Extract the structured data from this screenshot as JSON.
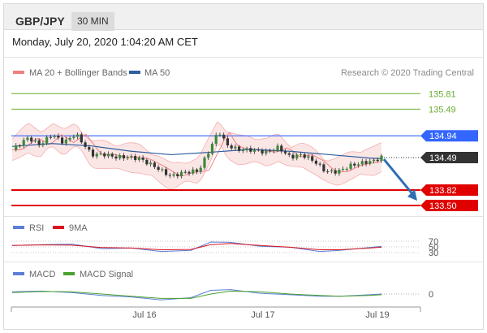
{
  "header": {
    "pair": "GBP/JPY",
    "interval": "30 MIN",
    "datetime": "Monday, July 20, 2020 1:04:20 AM CET"
  },
  "colors": {
    "bollinger": "#f08080",
    "bollinger_fill": "#fbe3e3",
    "ma50": "#2f5f9f",
    "resistance": "#6aab2e",
    "support": "#e00000",
    "pivot": "#3366ff",
    "current": "#333333",
    "arrow": "#2f6fb2",
    "rsi": "#5b7fd6",
    "rsi_ma": "#d9141e",
    "macd": "#5b7fd6",
    "macd_signal": "#4aa02c"
  },
  "chart_data": [
    {
      "type": "line",
      "title": "",
      "legend": [
        {
          "label": "MA 20 + Bollinger Bands",
          "color": "#f08080"
        },
        {
          "label": "MA 50",
          "color": "#2f5f9f"
        }
      ],
      "credit": "Research © 2020 Trading Central",
      "ylim": [
        133.35,
        136.05
      ],
      "x_ticks": [
        "Jul 16",
        "Jul 17",
        "Jul 19"
      ],
      "levels": [
        {
          "label": "135.81",
          "value": 135.81,
          "kind": "resistance"
        },
        {
          "label": "135.49",
          "value": 135.49,
          "kind": "resistance"
        },
        {
          "label": "134.94",
          "value": 134.94,
          "kind": "pivot"
        },
        {
          "label": "134.49",
          "value": 134.49,
          "kind": "current"
        },
        {
          "label": "133.82",
          "value": 133.82,
          "kind": "support"
        },
        {
          "label": "133.50",
          "value": 133.5,
          "kind": "support"
        }
      ],
      "price_path": [
        [
          0,
          134.65
        ],
        [
          8,
          134.9
        ],
        [
          14,
          134.75
        ],
        [
          20,
          134.97
        ],
        [
          26,
          134.8
        ],
        [
          32,
          134.98
        ],
        [
          40,
          134.55
        ],
        [
          46,
          134.56
        ],
        [
          52,
          134.5
        ],
        [
          58,
          134.5
        ],
        [
          64,
          134.47
        ],
        [
          72,
          134.3
        ],
        [
          80,
          134.1
        ],
        [
          86,
          134.18
        ],
        [
          94,
          134.22
        ],
        [
          100,
          134.7
        ],
        [
          104,
          135.05
        ],
        [
          108,
          134.75
        ],
        [
          114,
          134.65
        ],
        [
          120,
          134.65
        ],
        [
          128,
          134.6
        ],
        [
          134,
          134.7
        ],
        [
          140,
          134.5
        ],
        [
          146,
          134.55
        ],
        [
          152,
          134.42
        ],
        [
          158,
          134.2
        ],
        [
          164,
          134.2
        ],
        [
          170,
          134.32
        ],
        [
          176,
          134.38
        ],
        [
          182,
          134.42
        ],
        [
          186,
          134.5
        ]
      ],
      "ma50_path": [
        [
          0,
          134.72
        ],
        [
          20,
          134.78
        ],
        [
          40,
          134.73
        ],
        [
          60,
          134.62
        ],
        [
          80,
          134.55
        ],
        [
          100,
          134.6
        ],
        [
          120,
          134.66
        ],
        [
          140,
          134.62
        ],
        [
          160,
          134.55
        ],
        [
          180,
          134.48
        ],
        [
          186,
          134.47
        ]
      ],
      "arrow": {
        "from": [
          186,
          134.49
        ],
        "to": [
          198,
          133.6
        ]
      }
    },
    {
      "type": "line",
      "legend": [
        {
          "label": "RSI",
          "color": "#5b7fd6"
        },
        {
          "label": "9MA",
          "color": "#d9141e"
        }
      ],
      "ticks": [
        {
          "label": "70",
          "value": 70
        },
        {
          "label": "50",
          "value": 50
        },
        {
          "label": "30",
          "value": 30
        }
      ],
      "ylim": [
        10,
        90
      ],
      "rsi": [
        [
          0,
          55
        ],
        [
          15,
          58
        ],
        [
          30,
          60
        ],
        [
          45,
          44
        ],
        [
          60,
          46
        ],
        [
          75,
          34
        ],
        [
          90,
          38
        ],
        [
          100,
          67
        ],
        [
          110,
          66
        ],
        [
          125,
          52
        ],
        [
          140,
          49
        ],
        [
          155,
          34
        ],
        [
          165,
          38
        ],
        [
          180,
          48
        ],
        [
          186,
          52
        ]
      ],
      "ma9": [
        [
          0,
          55
        ],
        [
          15,
          57
        ],
        [
          30,
          56
        ],
        [
          45,
          48
        ],
        [
          60,
          46
        ],
        [
          75,
          40
        ],
        [
          90,
          41
        ],
        [
          100,
          58
        ],
        [
          110,
          62
        ],
        [
          125,
          55
        ],
        [
          140,
          49
        ],
        [
          155,
          40
        ],
        [
          165,
          40
        ],
        [
          180,
          46
        ],
        [
          186,
          49
        ]
      ]
    },
    {
      "type": "line",
      "legend": [
        {
          "label": "MACD",
          "color": "#5b7fd6"
        },
        {
          "label": "MACD Signal",
          "color": "#4aa02c"
        }
      ],
      "ticks": [
        {
          "label": "0",
          "value": 0
        }
      ],
      "ylim": [
        -0.2,
        0.2
      ],
      "macd": [
        [
          0,
          0.03
        ],
        [
          15,
          0.04
        ],
        [
          30,
          0.02
        ],
        [
          45,
          -0.02
        ],
        [
          60,
          -0.04
        ],
        [
          75,
          -0.08
        ],
        [
          90,
          -0.05
        ],
        [
          100,
          0.05
        ],
        [
          110,
          0.06
        ],
        [
          125,
          0.01
        ],
        [
          140,
          -0.01
        ],
        [
          155,
          -0.03
        ],
        [
          165,
          -0.03
        ],
        [
          180,
          -0.01
        ],
        [
          186,
          0.0
        ]
      ],
      "signal": [
        [
          0,
          0.02
        ],
        [
          15,
          0.035
        ],
        [
          30,
          0.03
        ],
        [
          45,
          0.0
        ],
        [
          60,
          -0.03
        ],
        [
          75,
          -0.06
        ],
        [
          90,
          -0.06
        ],
        [
          100,
          0.0
        ],
        [
          110,
          0.04
        ],
        [
          125,
          0.03
        ],
        [
          140,
          0.0
        ],
        [
          155,
          -0.02
        ],
        [
          165,
          -0.03
        ],
        [
          180,
          -0.02
        ],
        [
          186,
          -0.01
        ]
      ]
    }
  ]
}
